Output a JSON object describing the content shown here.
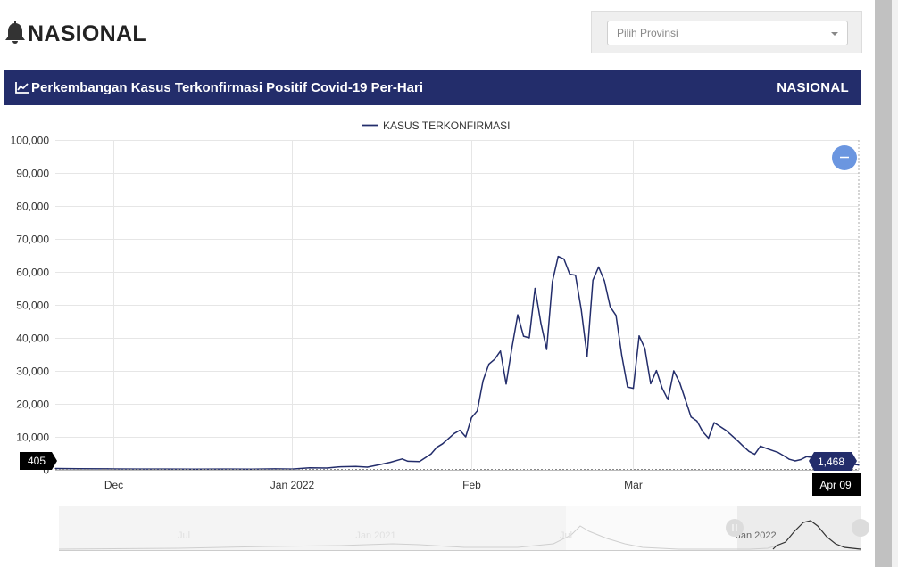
{
  "page": {
    "title": "NASIONAL",
    "title_icon": "bell-icon"
  },
  "province_select": {
    "placeholder": "Pilih Provinsi"
  },
  "panel": {
    "title": "Perkembangan Kasus Terkonfirmasi Positif Covid-19 Per-Hari",
    "title_icon": "line-chart-icon",
    "scope": "NASIONAL"
  },
  "colors": {
    "header_bg": "#232d6b",
    "series": "#232d6b",
    "zoom_button": "#6b96e0"
  },
  "chart_data": {
    "type": "line",
    "title": "",
    "xlabel": "",
    "ylabel": "",
    "legend": {
      "position": "top-center",
      "entries": [
        "KASUS TERKONFIRMASI"
      ]
    },
    "ylim": [
      0,
      100000
    ],
    "xlim": [
      "2021-11-21",
      "2022-04-09"
    ],
    "y_ticks": [
      "0",
      "10,000",
      "20,000",
      "30,000",
      "40,000",
      "50,000",
      "60,000",
      "70,000",
      "80,000",
      "90,000",
      "100,000"
    ],
    "x_ticks": [
      {
        "date": "2021-12-01",
        "label": "Dec"
      },
      {
        "date": "2022-01-01",
        "label": "Jan 2022"
      },
      {
        "date": "2022-02-01",
        "label": "Feb"
      },
      {
        "date": "2022-03-01",
        "label": "Mar"
      }
    ],
    "grid": true,
    "cursor": {
      "x_label": "Apr 09",
      "y_left_label": "405",
      "y_right_label": "1,468"
    },
    "series": [
      {
        "name": "KASUS TERKONFIRMASI",
        "points": [
          [
            "2021-11-21",
            400
          ],
          [
            "2021-11-25",
            350
          ],
          [
            "2021-11-30",
            300
          ],
          [
            "2021-12-05",
            250
          ],
          [
            "2021-12-10",
            250
          ],
          [
            "2021-12-15",
            200
          ],
          [
            "2021-12-20",
            250
          ],
          [
            "2021-12-25",
            200
          ],
          [
            "2021-12-29",
            300
          ],
          [
            "2022-01-01",
            250
          ],
          [
            "2022-01-04",
            600
          ],
          [
            "2022-01-07",
            550
          ],
          [
            "2022-01-09",
            900
          ],
          [
            "2022-01-12",
            1000
          ],
          [
            "2022-01-14",
            800
          ],
          [
            "2022-01-16",
            1500
          ],
          [
            "2022-01-18",
            2300
          ],
          [
            "2022-01-20",
            3300
          ],
          [
            "2022-01-21",
            2600
          ],
          [
            "2022-01-23",
            2500
          ],
          [
            "2022-01-25",
            4800
          ],
          [
            "2022-01-26",
            6800
          ],
          [
            "2022-01-27",
            7900
          ],
          [
            "2022-01-29",
            11000
          ],
          [
            "2022-01-30",
            12000
          ],
          [
            "2022-01-31",
            10000
          ],
          [
            "2022-02-01",
            15800
          ],
          [
            "2022-02-02",
            17900
          ],
          [
            "2022-02-03",
            27000
          ],
          [
            "2022-02-04",
            32000
          ],
          [
            "2022-02-05",
            33500
          ],
          [
            "2022-02-06",
            36000
          ],
          [
            "2022-02-07",
            26000
          ],
          [
            "2022-02-08",
            37000
          ],
          [
            "2022-02-09",
            47000
          ],
          [
            "2022-02-10",
            40500
          ],
          [
            "2022-02-11",
            40000
          ],
          [
            "2022-02-12",
            55000
          ],
          [
            "2022-02-13",
            44500
          ],
          [
            "2022-02-14",
            36500
          ],
          [
            "2022-02-15",
            57000
          ],
          [
            "2022-02-16",
            64700
          ],
          [
            "2022-02-17",
            63900
          ],
          [
            "2022-02-18",
            59300
          ],
          [
            "2022-02-19",
            59000
          ],
          [
            "2022-02-20",
            48500
          ],
          [
            "2022-02-21",
            34400
          ],
          [
            "2022-02-22",
            57500
          ],
          [
            "2022-02-23",
            61500
          ],
          [
            "2022-02-24",
            57300
          ],
          [
            "2022-02-25",
            49400
          ],
          [
            "2022-02-26",
            46800
          ],
          [
            "2022-02-27",
            34800
          ],
          [
            "2022-02-28",
            25100
          ],
          [
            "2022-03-01",
            24700
          ],
          [
            "2022-03-02",
            40600
          ],
          [
            "2022-03-03",
            36800
          ],
          [
            "2022-03-04",
            26100
          ],
          [
            "2022-03-05",
            30100
          ],
          [
            "2022-03-06",
            24700
          ],
          [
            "2022-03-07",
            21300
          ],
          [
            "2022-03-08",
            30000
          ],
          [
            "2022-03-09",
            26500
          ],
          [
            "2022-03-10",
            21300
          ],
          [
            "2022-03-11",
            16000
          ],
          [
            "2022-03-12",
            14800
          ],
          [
            "2022-03-13",
            11600
          ],
          [
            "2022-03-14",
            9600
          ],
          [
            "2022-03-15",
            14300
          ],
          [
            "2022-03-17",
            12000
          ],
          [
            "2022-03-19",
            8900
          ],
          [
            "2022-03-20",
            7200
          ],
          [
            "2022-03-21",
            5600
          ],
          [
            "2022-03-22",
            4700
          ],
          [
            "2022-03-23",
            7200
          ],
          [
            "2022-03-24",
            6500
          ],
          [
            "2022-03-26",
            5300
          ],
          [
            "2022-03-27",
            4300
          ],
          [
            "2022-03-28",
            3200
          ],
          [
            "2022-03-29",
            2700
          ],
          [
            "2022-03-30",
            3100
          ],
          [
            "2022-03-31",
            4000
          ],
          [
            "2022-04-02",
            3500
          ],
          [
            "2022-04-04",
            2400
          ],
          [
            "2022-04-06",
            2100
          ],
          [
            "2022-04-08",
            1700
          ],
          [
            "2022-04-09",
            1468
          ]
        ]
      }
    ]
  },
  "navigator": {
    "labels": [
      "Jul",
      "Jan 2021",
      "Jul",
      "Jan 2022"
    ]
  }
}
